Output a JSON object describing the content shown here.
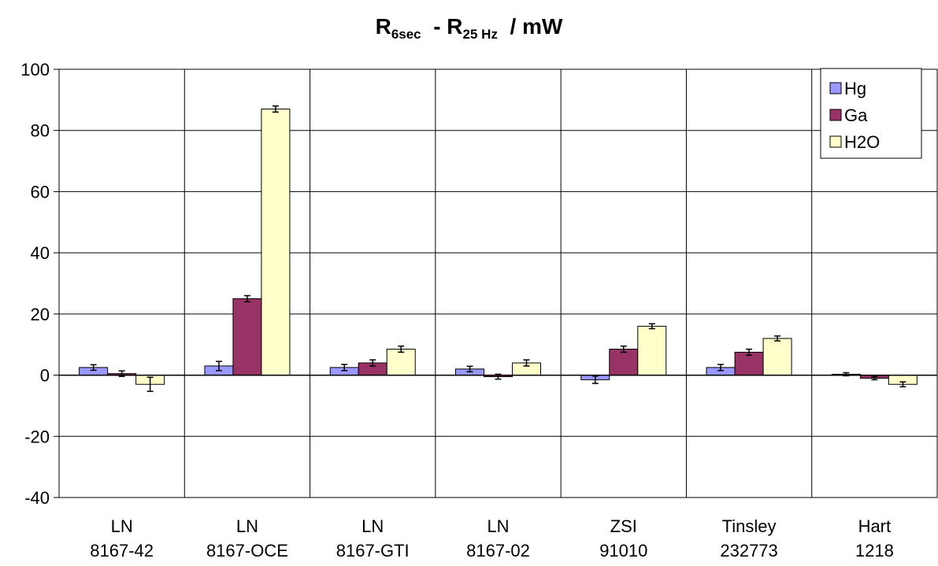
{
  "chart_data": {
    "type": "bar",
    "title": {
      "r": "R",
      "sub1": "6sec",
      "mid": "  - R",
      "sub2": "25 Hz",
      "tail": "  / ",
      "unit": "mW"
    },
    "categories": [
      [
        "LN",
        "8167-42"
      ],
      [
        "LN",
        "8167-OCE"
      ],
      [
        "LN",
        "8167-GTI"
      ],
      [
        "LN",
        "8167-02"
      ],
      [
        "ZSI",
        "91010"
      ],
      [
        "Tinsley",
        "232773"
      ],
      [
        "Hart",
        "1218"
      ]
    ],
    "series": [
      {
        "name": "Hg",
        "color": "#9999ff",
        "values": [
          2.5,
          3.0,
          2.5,
          2.0,
          -1.5,
          2.5,
          0.3
        ],
        "errors": [
          0.9,
          1.5,
          1.0,
          0.9,
          1.2,
          1.0,
          0.5
        ]
      },
      {
        "name": "Ga",
        "color": "#993366",
        "values": [
          0.5,
          25.0,
          4.0,
          -0.5,
          8.5,
          7.5,
          -1.0
        ],
        "errors": [
          0.9,
          1.0,
          1.0,
          0.8,
          1.0,
          1.0,
          0.5
        ]
      },
      {
        "name": "H2O",
        "color": "#ffffcc",
        "values": [
          -3.0,
          87.0,
          8.5,
          4.0,
          16.0,
          12.0,
          -3.0
        ],
        "errors": [
          2.3,
          1.0,
          1.0,
          1.0,
          0.8,
          0.8,
          0.8
        ]
      }
    ],
    "y_ticks": [
      "-40",
      "-20",
      "0",
      "20",
      "40",
      "60",
      "80",
      "100"
    ],
    "ylim": [
      -40,
      100
    ],
    "grid": true,
    "legend": "top-right"
  }
}
